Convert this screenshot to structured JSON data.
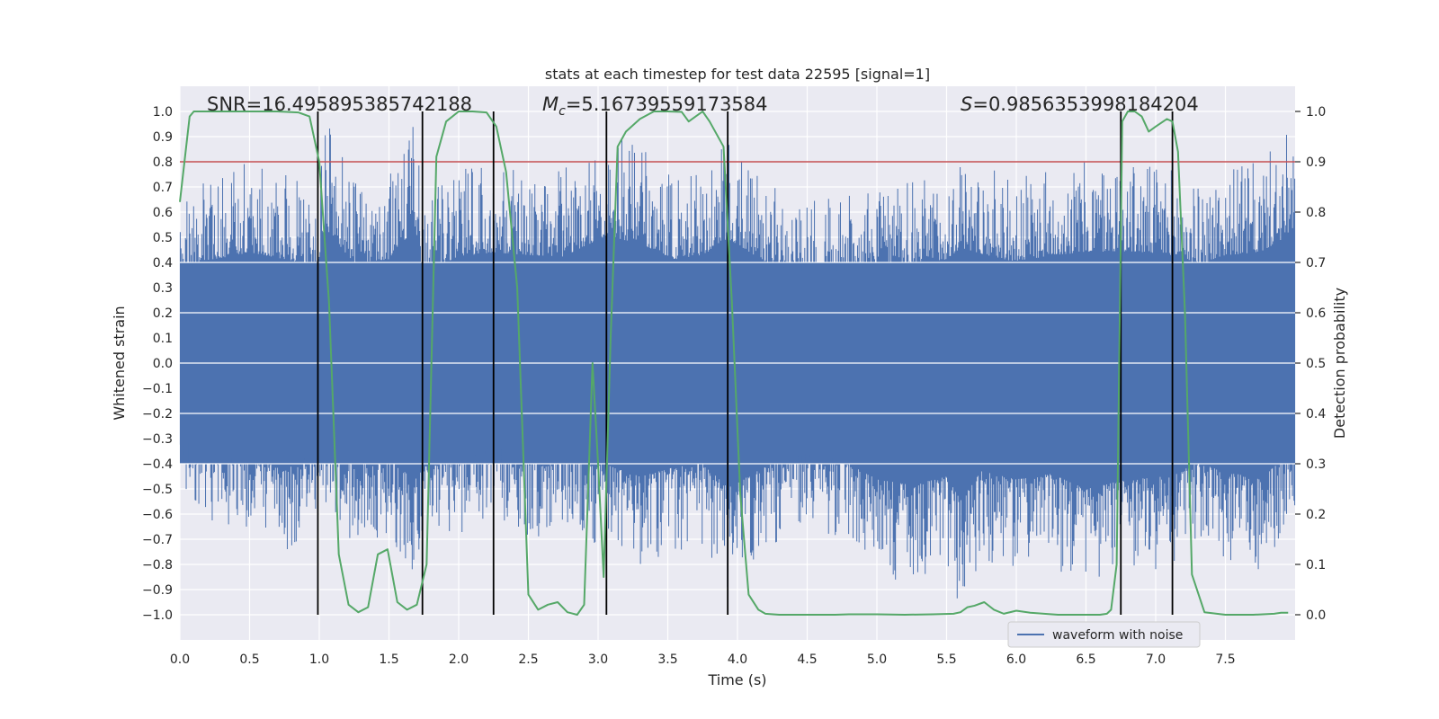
{
  "chart_data": {
    "type": "line",
    "title": "stats at each timestep for test data 22595 [signal=1]",
    "xlabel": "Time (s)",
    "ylabel": "Whitened strain",
    "y2label": "Detection probability",
    "xlim": [
      0,
      8
    ],
    "ylim": [
      -1.1,
      1.1
    ],
    "y2lim": [
      -0.05,
      1.05
    ],
    "xticks": [
      0.0,
      0.5,
      1.0,
      1.5,
      2.0,
      2.5,
      3.0,
      3.5,
      4.0,
      4.5,
      5.0,
      5.5,
      6.0,
      6.5,
      7.0,
      7.5
    ],
    "xtick_labels": [
      "0.0",
      "0.5",
      "1.0",
      "1.5",
      "2.0",
      "2.5",
      "3.0",
      "3.5",
      "4.0",
      "4.5",
      "5.0",
      "5.5",
      "6.0",
      "6.5",
      "7.0",
      "7.5"
    ],
    "yticks": [
      1.0,
      0.9,
      0.8,
      0.7,
      0.6,
      0.5,
      0.4,
      0.3,
      0.2,
      0.1,
      0.0,
      -0.1,
      -0.2,
      -0.3,
      -0.4,
      -0.5,
      -0.6,
      -0.7,
      -0.8,
      -0.9,
      -1.0
    ],
    "ytick_labels": [
      "1.0",
      "0.9",
      "0.8",
      "0.7",
      "0.6",
      "0.5",
      "0.4",
      "0.3",
      "0.2",
      "0.1",
      "0.0",
      "−0.1",
      "−0.2",
      "−0.3",
      "−0.4",
      "−0.5",
      "−0.6",
      "−0.7",
      "−0.8",
      "−0.9",
      "−1.0"
    ],
    "y2ticks": [
      1.0,
      0.9,
      0.8,
      0.7,
      0.6,
      0.5,
      0.4,
      0.3,
      0.2,
      0.1,
      0.0
    ],
    "y2tick_labels": [
      "1.0",
      "0.9",
      "0.8",
      "0.7",
      "0.6",
      "0.5",
      "0.4",
      "0.3",
      "0.2",
      "0.1",
      "0.0"
    ],
    "annotations": {
      "snr": "SNR=16.495895385742188",
      "mc_symbol": "M",
      "mc_sub": "c",
      "mc_value": "=5.16739559173584",
      "s_symbol": "S",
      "s_value": "=0.9856353998184204"
    },
    "legend": {
      "label": "waveform with noise",
      "placement": "lower-right"
    },
    "threshold": {
      "value": 0.9,
      "axis": "right",
      "color": "#c44e52"
    },
    "vertical_lines": [
      {
        "x": 0.99,
        "y": [
          -1.0,
          1.0
        ]
      },
      {
        "x": 1.74,
        "y": [
          -1.0,
          1.0
        ]
      },
      {
        "x": 2.25,
        "y": [
          -1.0,
          1.0
        ]
      },
      {
        "x": 3.06,
        "y": [
          -1.0,
          1.0
        ]
      },
      {
        "x": 3.93,
        "y": [
          -1.0,
          1.0
        ]
      },
      {
        "x": 6.75,
        "y": [
          -1.0,
          1.0
        ]
      },
      {
        "x": 7.12,
        "y": [
          -1.0,
          1.0
        ]
      }
    ],
    "series": [
      {
        "name": "waveform with noise",
        "axis": "left",
        "color": "#4c72b0",
        "envelope": {
          "t": [
            0.0,
            0.25,
            0.5,
            0.75,
            0.99,
            1.05,
            1.25,
            1.5,
            1.69,
            1.74,
            2.0,
            2.25,
            2.5,
            2.75,
            3.06,
            3.3,
            3.55,
            3.75,
            3.93,
            4.25,
            4.5,
            4.75,
            5.0,
            5.25,
            5.5,
            5.6,
            5.75,
            6.0,
            6.25,
            6.5,
            6.75,
            7.0,
            7.12,
            7.3,
            7.5,
            7.75,
            8.0
          ],
          "upper": [
            0.65,
            0.75,
            0.8,
            0.75,
            0.7,
            0.97,
            0.72,
            0.75,
            0.98,
            0.65,
            0.77,
            0.8,
            0.78,
            0.77,
            0.92,
            0.86,
            0.75,
            0.78,
            0.9,
            0.7,
            0.65,
            0.67,
            0.7,
            0.72,
            0.75,
            0.83,
            0.79,
            0.73,
            0.78,
            0.8,
            0.81,
            0.79,
            0.78,
            0.7,
            0.78,
            0.8,
            0.95
          ],
          "lower": [
            -0.55,
            -0.65,
            -0.65,
            -0.78,
            -0.62,
            -0.6,
            -0.72,
            -0.7,
            -0.84,
            -0.75,
            -0.7,
            -0.6,
            -0.7,
            -0.68,
            -0.73,
            -0.82,
            -0.75,
            -0.72,
            -0.9,
            -0.72,
            -0.65,
            -0.7,
            -0.84,
            -0.88,
            -0.82,
            -0.99,
            -0.78,
            -0.84,
            -0.8,
            -0.91,
            -0.85,
            -0.82,
            -0.8,
            -0.72,
            -0.78,
            -0.84,
            -0.6
          ]
        }
      },
      {
        "name": "detection probability",
        "axis": "right",
        "color": "#55a868",
        "x": [
          0.0,
          0.07,
          0.1,
          0.2,
          0.3,
          0.5,
          0.7,
          0.85,
          0.93,
          1.0,
          1.07,
          1.14,
          1.21,
          1.28,
          1.35,
          1.42,
          1.49,
          1.56,
          1.63,
          1.7,
          1.77,
          1.84,
          1.91,
          2.0,
          2.1,
          2.2,
          2.27,
          2.34,
          2.42,
          2.5,
          2.57,
          2.64,
          2.71,
          2.78,
          2.85,
          2.9,
          2.96,
          3.0,
          3.04,
          3.09,
          3.14,
          3.2,
          3.3,
          3.4,
          3.5,
          3.6,
          3.65,
          3.7,
          3.75,
          3.8,
          3.9,
          3.96,
          4.02,
          4.08,
          4.15,
          4.2,
          4.3,
          4.4,
          4.5,
          4.6,
          4.7,
          4.8,
          4.9,
          5.0,
          5.2,
          5.4,
          5.55,
          5.6,
          5.65,
          5.7,
          5.77,
          5.84,
          5.91,
          6.0,
          6.1,
          6.2,
          6.3,
          6.4,
          6.5,
          6.6,
          6.65,
          6.68,
          6.72,
          6.76,
          6.8,
          6.85,
          6.9,
          6.95,
          7.0,
          7.08,
          7.12,
          7.16,
          7.21,
          7.26,
          7.35,
          7.5,
          7.7,
          7.85,
          7.9,
          7.95
        ],
        "y": [
          0.82,
          0.99,
          1.0,
          1.0,
          1.0,
          1.0,
          1.0,
          0.998,
          0.99,
          0.9,
          0.62,
          0.12,
          0.02,
          0.005,
          0.015,
          0.12,
          0.13,
          0.025,
          0.01,
          0.02,
          0.1,
          0.91,
          0.98,
          1.0,
          1.0,
          0.998,
          0.97,
          0.88,
          0.65,
          0.04,
          0.01,
          0.02,
          0.025,
          0.005,
          0.0,
          0.02,
          0.5,
          0.3,
          0.075,
          0.55,
          0.93,
          0.96,
          0.985,
          1.0,
          1.0,
          0.999,
          0.98,
          0.99,
          1.0,
          0.98,
          0.93,
          0.62,
          0.24,
          0.04,
          0.01,
          0.002,
          0.0,
          0.0,
          0.0,
          0.0,
          0.0,
          0.001,
          0.001,
          0.001,
          0.0,
          0.001,
          0.002,
          0.005,
          0.015,
          0.018,
          0.025,
          0.01,
          0.002,
          0.008,
          0.004,
          0.002,
          0.0,
          0.0,
          0.0,
          0.0,
          0.002,
          0.01,
          0.1,
          0.98,
          1.0,
          1.0,
          0.99,
          0.96,
          0.97,
          0.985,
          0.98,
          0.92,
          0.6,
          0.08,
          0.005,
          0.0,
          0.0,
          0.002,
          0.004,
          0.004
        ]
      }
    ]
  }
}
